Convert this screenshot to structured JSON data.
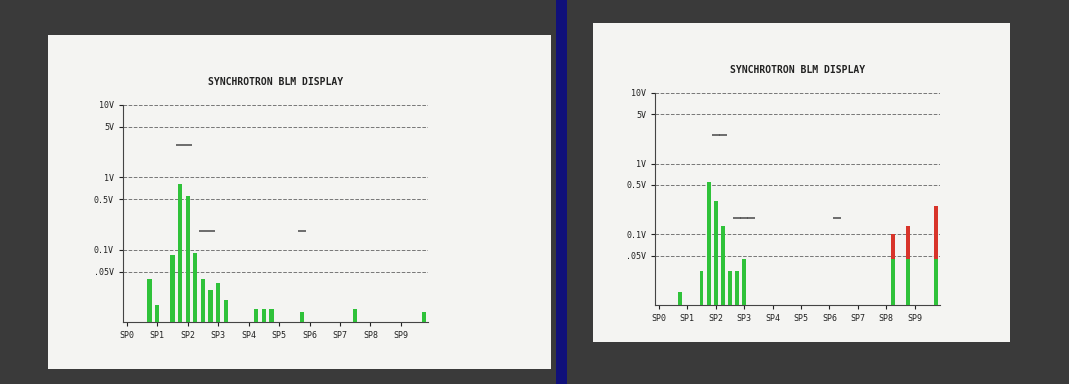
{
  "chart_data": [
    {
      "type": "bar",
      "title": "SYNCHROTRON BLM DISPLAY",
      "categories": [
        "SP0",
        null,
        null,
        null,
        "SP1",
        null,
        null,
        null,
        "SP2",
        null,
        null,
        null,
        "SP3",
        null,
        null,
        null,
        "SP4",
        null,
        null,
        null,
        "SP5",
        null,
        null,
        null,
        "SP6",
        null,
        null,
        null,
        "SP7",
        null,
        null,
        null,
        "SP8",
        null,
        null,
        null,
        "SP9",
        null,
        null,
        null
      ],
      "series": [
        {
          "type": "bar",
          "color": "#2fc23a",
          "values": [
            null,
            null,
            null,
            0.04,
            0.017,
            null,
            0.085,
            0.8,
            0.55,
            0.09,
            0.04,
            0.028,
            0.035,
            0.02,
            null,
            null,
            null,
            0.015,
            0.015,
            0.015,
            null,
            null,
            null,
            0.014,
            null,
            null,
            null,
            null,
            null,
            null,
            0.015,
            null,
            null,
            null,
            null,
            null,
            null,
            null,
            null,
            0.014
          ]
        },
        {
          "type": "scatter",
          "marker": "_",
          "color": "#555555",
          "values": [
            null,
            null,
            null,
            null,
            null,
            null,
            null,
            2.8,
            2.8,
            null,
            0.18,
            0.18,
            null,
            null,
            null,
            null,
            null,
            null,
            null,
            null,
            null,
            null,
            null,
            0.18,
            null,
            null,
            null,
            null,
            null,
            null,
            null,
            null,
            null,
            null,
            null,
            null,
            null,
            null,
            null,
            null
          ]
        }
      ],
      "log": "y",
      "grid": true,
      "stacked": false,
      "ylim": [
        0.01,
        10
      ],
      "yticks": [
        {
          "value": 0.05,
          "label": ".05V"
        },
        {
          "value": 0.1,
          "label": "0.1V"
        },
        {
          "value": 0.5,
          "label": "0.5V"
        },
        {
          "value": 1,
          "label": "1V"
        },
        {
          "value": 5,
          "label": "5V"
        },
        {
          "value": 10,
          "label": "10V"
        }
      ]
    },
    {
      "type": "bar",
      "title": "SYNCHROTRON BLM DISPLAY",
      "categories": [
        "SP0",
        null,
        null,
        null,
        "SP1",
        null,
        null,
        null,
        "SP2",
        null,
        null,
        null,
        "SP3",
        null,
        null,
        null,
        "SP4",
        null,
        null,
        null,
        "SP5",
        null,
        null,
        null,
        "SP6",
        null,
        null,
        null,
        "SP7",
        null,
        null,
        null,
        "SP8",
        null,
        null,
        null,
        "SP9",
        null,
        null,
        null
      ],
      "series": [
        {
          "type": "bar",
          "color": "#2fc23a",
          "values": [
            null,
            null,
            null,
            0.015,
            null,
            null,
            0.03,
            0.55,
            0.3,
            0.13,
            0.03,
            0.03,
            0.045,
            null,
            null,
            null,
            null,
            null,
            null,
            null,
            null,
            null,
            null,
            null,
            null,
            null,
            null,
            null,
            null,
            null,
            null,
            null,
            null,
            0.045,
            null,
            0.045,
            null,
            null,
            null,
            0.045
          ]
        },
        {
          "type": "bar",
          "color": "#d8342a",
          "values": [
            null,
            null,
            null,
            null,
            null,
            null,
            null,
            null,
            null,
            null,
            null,
            null,
            null,
            null,
            null,
            null,
            null,
            null,
            null,
            null,
            null,
            null,
            null,
            null,
            null,
            null,
            null,
            null,
            null,
            null,
            null,
            null,
            null,
            0.055,
            null,
            0.085,
            null,
            null,
            null,
            0.205
          ]
        },
        {
          "type": "scatter",
          "marker": "_",
          "color": "#555555",
          "values": [
            null,
            null,
            null,
            null,
            null,
            null,
            null,
            null,
            2.5,
            2.5,
            null,
            0.17,
            0.17,
            0.17,
            null,
            null,
            null,
            null,
            null,
            null,
            null,
            null,
            null,
            null,
            null,
            0.17,
            null,
            null,
            null,
            null,
            null,
            null,
            null,
            null,
            null,
            null,
            null,
            null,
            null,
            null
          ]
        }
      ],
      "log": "y",
      "grid": true,
      "stacked": true,
      "ylim": [
        0.01,
        10
      ],
      "yticks": [
        {
          "value": 0.05,
          "label": ".05V"
        },
        {
          "value": 0.1,
          "label": "0.1V"
        },
        {
          "value": 0.5,
          "label": "0.5V"
        },
        {
          "value": 1,
          "label": "1V"
        },
        {
          "value": 5,
          "label": "5V"
        },
        {
          "value": 10,
          "label": "10V"
        }
      ]
    }
  ]
}
